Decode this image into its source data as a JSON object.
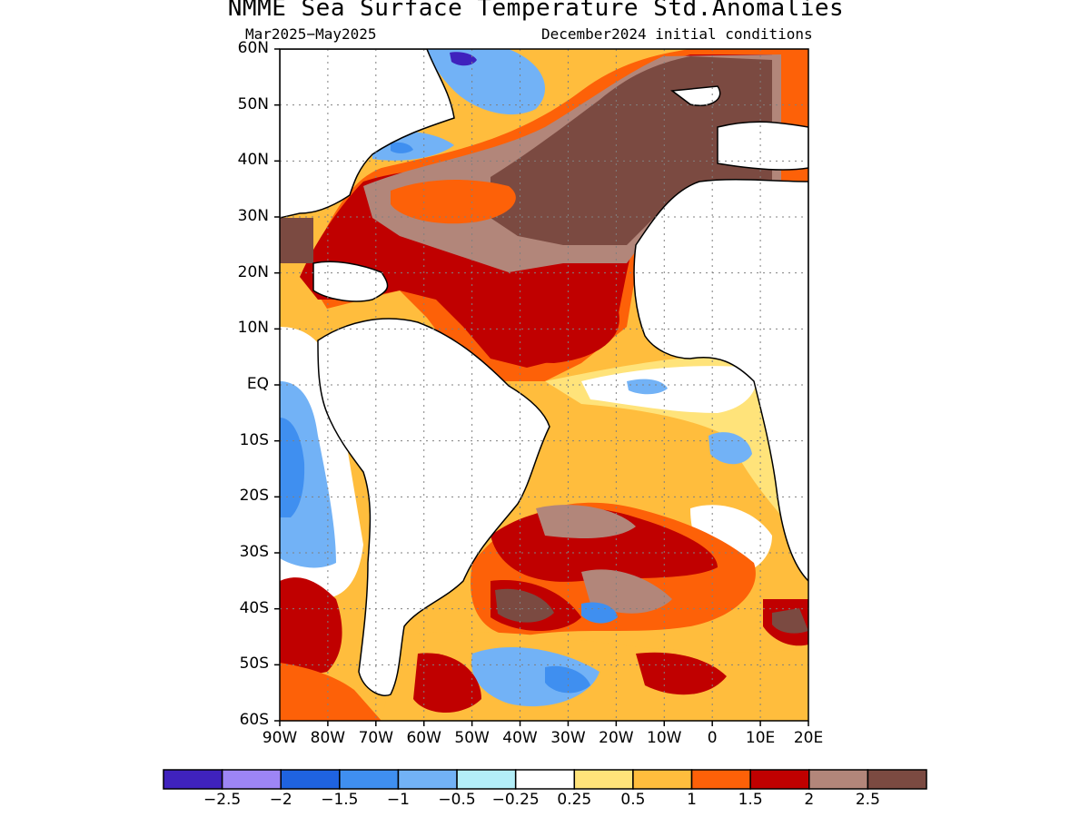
{
  "title": "NMME Sea Surface Temperature Std.Anomalies",
  "subtitle_left": "Mar2025−May2025",
  "subtitle_right": "December2024 initial conditions",
  "lat_labels": [
    "60N",
    "50N",
    "40N",
    "30N",
    "20N",
    "10N",
    "EQ",
    "10S",
    "20S",
    "30S",
    "40S",
    "50S",
    "60S"
  ],
  "lon_labels": [
    "90W",
    "80W",
    "70W",
    "60W",
    "50W",
    "40W",
    "30W",
    "20W",
    "10W",
    "0",
    "10E",
    "20E"
  ],
  "colorbar": {
    "colors": [
      "#3f22bd",
      "#9d85f5",
      "#1f63e0",
      "#3f8ff0",
      "#72b2f6",
      "#b3eef8",
      "#ffffff",
      "#ffe37a",
      "#ffbd3d",
      "#fd6108",
      "#c00000",
      "#b2867a",
      "#7b4a41"
    ],
    "labels": [
      "−2.5",
      "−2",
      "−1.5",
      "−1",
      "−0.5",
      "−0.25",
      "0.25",
      "0.5",
      "1",
      "1.5",
      "2",
      "2.5"
    ]
  },
  "colors": {
    "land": "#ffffff",
    "coast": "#000000",
    "grid": "#808080"
  }
}
